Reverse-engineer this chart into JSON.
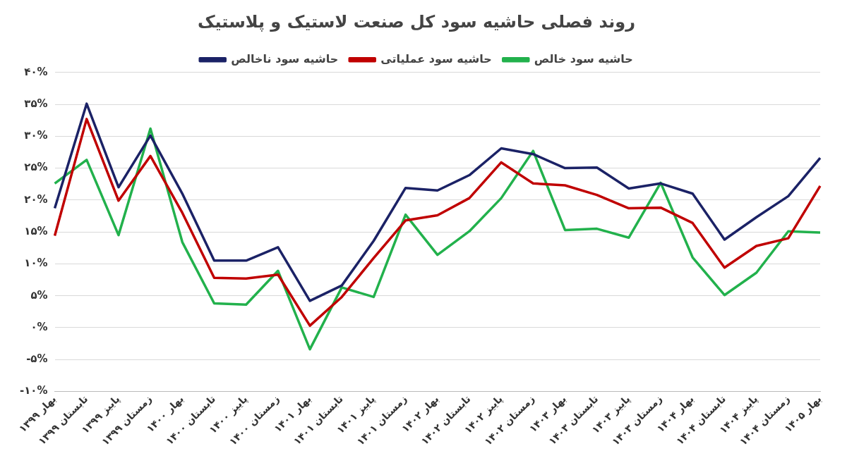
{
  "chart_data": {
    "type": "line",
    "title": "روند فصلی حاشیه سود کل صنعت لاستیک و پلاستیک",
    "categories": [
      "بهار ۱۳۹۹",
      "تابستان ۱۳۹۹",
      "پاییز ۱۳۹۹",
      "زمستان ۱۳۹۹",
      "بهار ۱۴۰۰",
      "تابستان ۱۴۰۰",
      "پاییز ۱۴۰۰",
      "زمستان ۱۴۰۰",
      "بهار ۱۴۰۱",
      "تابستان ۱۴۰۱",
      "پاییز ۱۴۰۱",
      "زمستان ۱۴۰۱",
      "بهار ۱۴۰۲",
      "تابستان ۱۴۰۲",
      "پاییز ۱۴۰۲",
      "زمستان ۱۴۰۲",
      "بهار ۱۴۰۳",
      "تابستان ۱۴۰۳",
      "پاییز ۱۴۰۳",
      "زمستان ۱۴۰۳",
      "بهار ۱۴۰۴",
      "تابستان ۱۴۰۴",
      "پاییز ۱۴۰۴",
      "زمستان ۱۴۰۴",
      "بهار ۱۴۰۵"
    ],
    "series": [
      {
        "name": "حاشیه سود ناخالص",
        "color": "#1b2266",
        "values": [
          18.7,
          35.1,
          22.0,
          30.1,
          21.0,
          10.5,
          10.5,
          12.6,
          4.2,
          6.6,
          13.6,
          21.9,
          21.5,
          23.9,
          28.1,
          27.2,
          25.0,
          25.1,
          21.8,
          22.6,
          21.0,
          13.8,
          17.3,
          20.6,
          26.6
        ]
      },
      {
        "name": "حاشیه سود عملیاتی",
        "color": "#c00000",
        "values": [
          14.4,
          32.7,
          19.9,
          26.9,
          18.0,
          7.8,
          7.7,
          8.3,
          0.3,
          4.8,
          10.9,
          16.8,
          17.6,
          20.3,
          25.9,
          22.6,
          22.3,
          20.8,
          18.7,
          18.8,
          16.4,
          9.4,
          12.8,
          14.0,
          22.2
        ]
      },
      {
        "name": "حاشیه سود خالص",
        "color": "#22b14c",
        "values": [
          22.6,
          26.3,
          14.5,
          31.2,
          13.4,
          3.8,
          3.6,
          8.9,
          -3.4,
          6.3,
          4.8,
          17.7,
          11.4,
          15.1,
          20.3,
          27.7,
          15.3,
          15.5,
          14.1,
          22.7,
          11.0,
          5.1,
          8.6,
          15.1,
          14.9
        ]
      }
    ],
    "ylim": [
      -10,
      40
    ],
    "yticks": [
      {
        "value": -10,
        "label": "-۱۰%"
      },
      {
        "value": -5,
        "label": "-۵%"
      },
      {
        "value": 0,
        "label": "۰%"
      },
      {
        "value": 5,
        "label": "۵%"
      },
      {
        "value": 10,
        "label": "۱۰%"
      },
      {
        "value": 15,
        "label": "۱۵%"
      },
      {
        "value": 20,
        "label": "۲۰%"
      },
      {
        "value": 25,
        "label": "۲۵%"
      },
      {
        "value": 30,
        "label": "۳۰%"
      },
      {
        "value": 35,
        "label": "۳۵%"
      },
      {
        "value": 40,
        "label": "۴۰%"
      }
    ],
    "grid": "y",
    "legend": "top",
    "marker": "none",
    "line_style": "solid"
  }
}
